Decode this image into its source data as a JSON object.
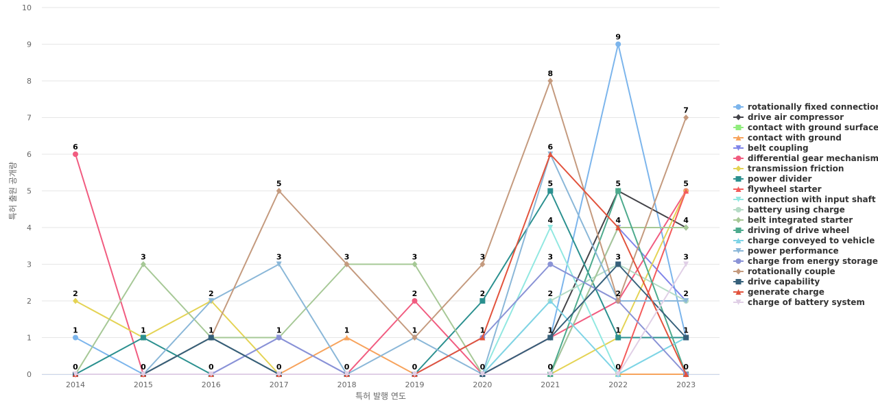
{
  "chart_data": {
    "type": "line",
    "title": "",
    "xlabel": "특허 발행 연도",
    "ylabel": "특허 출원 공개량",
    "x": [
      2014,
      2015,
      2016,
      2017,
      2018,
      2019,
      2020,
      2021,
      2022,
      2023
    ],
    "ylim": [
      0,
      10
    ],
    "yticks": [
      0,
      1,
      2,
      3,
      4,
      5,
      6,
      7,
      8,
      9,
      10
    ],
    "grid": true,
    "legend_position": "right",
    "data_labels": true,
    "series": [
      {
        "name": "rotationally fixed connection",
        "color": "#7cb5ec",
        "marker": "circle",
        "values": [
          1,
          0,
          0,
          0,
          0,
          0,
          0,
          1,
          9,
          1
        ]
      },
      {
        "name": "drive air compressor",
        "color": "#434348",
        "marker": "diamond",
        "values": [
          0,
          0,
          1,
          0,
          0,
          0,
          0,
          1,
          5,
          4
        ]
      },
      {
        "name": "contact with ground surface",
        "color": "#90ed7d",
        "marker": "square",
        "values": [
          0,
          0,
          0,
          0,
          0,
          0,
          0,
          0,
          0,
          0
        ]
      },
      {
        "name": "contact with ground",
        "color": "#f7a35c",
        "marker": "triangle",
        "values": [
          0,
          0,
          0,
          0,
          1,
          0,
          0,
          0,
          0,
          0
        ]
      },
      {
        "name": "belt coupling",
        "color": "#8085e9",
        "marker": "triangle-down",
        "values": [
          0,
          0,
          0,
          1,
          0,
          0,
          0,
          0,
          4,
          2
        ]
      },
      {
        "name": "differential gear mechanism",
        "color": "#f15c80",
        "marker": "circle",
        "values": [
          6,
          0,
          0,
          0,
          0,
          2,
          0,
          1,
          2,
          5
        ]
      },
      {
        "name": "transmission friction",
        "color": "#e4d354",
        "marker": "diamond",
        "values": [
          2,
          1,
          2,
          0,
          0,
          0,
          0,
          0,
          1,
          5
        ]
      },
      {
        "name": "power divider",
        "color": "#2b908f",
        "marker": "square",
        "values": [
          0,
          1,
          0,
          0,
          0,
          0,
          2,
          5,
          1,
          1
        ]
      },
      {
        "name": "flywheel starter",
        "color": "#f45b5b",
        "marker": "triangle",
        "values": [
          0,
          0,
          0,
          0,
          0,
          0,
          0,
          0,
          0,
          5
        ]
      },
      {
        "name": "connection with input shaft",
        "color": "#91e8e1",
        "marker": "triangle-down",
        "values": [
          0,
          0,
          0,
          0,
          0,
          0,
          0,
          4,
          0,
          1
        ]
      },
      {
        "name": "battery using charge",
        "color": "#b5dcc6",
        "marker": "circle",
        "values": [
          0,
          0,
          0,
          0,
          0,
          0,
          0,
          2,
          3,
          2
        ]
      },
      {
        "name": "belt integrated starter",
        "color": "#a6c896",
        "marker": "diamond",
        "values": [
          0,
          3,
          1,
          1,
          3,
          3,
          0,
          0,
          4,
          4
        ]
      },
      {
        "name": "driving of drive wheel",
        "color": "#4daa8d",
        "marker": "square",
        "values": [
          0,
          0,
          0,
          0,
          0,
          0,
          0,
          0,
          5,
          0
        ]
      },
      {
        "name": "charge conveyed to vehicle",
        "color": "#7fd4e6",
        "marker": "triangle",
        "values": [
          0,
          0,
          0,
          0,
          0,
          0,
          0,
          2,
          0,
          1
        ]
      },
      {
        "name": "power performance",
        "color": "#8ab7d8",
        "marker": "triangle-down",
        "values": [
          0,
          0,
          2,
          3,
          0,
          1,
          0,
          6,
          2,
          2
        ]
      },
      {
        "name": "charge from energy storage ...",
        "color": "#8a93d6",
        "marker": "circle",
        "values": [
          0,
          0,
          0,
          1,
          0,
          0,
          1,
          3,
          2,
          0
        ]
      },
      {
        "name": "rotationally couple",
        "color": "#c49a7e",
        "marker": "diamond",
        "values": [
          0,
          0,
          1,
          5,
          3,
          1,
          3,
          8,
          2,
          7
        ]
      },
      {
        "name": "drive capability",
        "color": "#36607a",
        "marker": "square",
        "values": [
          0,
          0,
          1,
          0,
          0,
          0,
          0,
          1,
          3,
          1
        ]
      },
      {
        "name": "generate charge",
        "color": "#e2533d",
        "marker": "triangle",
        "values": [
          0,
          0,
          0,
          0,
          0,
          0,
          1,
          6,
          4,
          0
        ]
      },
      {
        "name": "charge of battery system",
        "color": "#e0cfe6",
        "marker": "triangle-down",
        "values": [
          0,
          0,
          0,
          0,
          0,
          0,
          0,
          0,
          0,
          3
        ]
      }
    ],
    "point_labels": [
      {
        "x": 2014,
        "y": 6,
        "text": "6"
      },
      {
        "x": 2014,
        "y": 2,
        "text": "2"
      },
      {
        "x": 2014,
        "y": 1,
        "text": "1"
      },
      {
        "x": 2014,
        "y": 0,
        "text": "0"
      },
      {
        "x": 2015,
        "y": 3,
        "text": "3"
      },
      {
        "x": 2015,
        "y": 1,
        "text": "1"
      },
      {
        "x": 2015,
        "y": 0,
        "text": "0"
      },
      {
        "x": 2016,
        "y": 2,
        "text": "2"
      },
      {
        "x": 2016,
        "y": 1,
        "text": "1"
      },
      {
        "x": 2016,
        "y": 0,
        "text": "0"
      },
      {
        "x": 2017,
        "y": 5,
        "text": "5"
      },
      {
        "x": 2017,
        "y": 3,
        "text": "3"
      },
      {
        "x": 2017,
        "y": 1,
        "text": "1"
      },
      {
        "x": 2017,
        "y": 0,
        "text": "0"
      },
      {
        "x": 2018,
        "y": 3,
        "text": "3"
      },
      {
        "x": 2018,
        "y": 1,
        "text": "1"
      },
      {
        "x": 2018,
        "y": 0,
        "text": "0"
      },
      {
        "x": 2019,
        "y": 3,
        "text": "3"
      },
      {
        "x": 2019,
        "y": 2,
        "text": "2"
      },
      {
        "x": 2019,
        "y": 1,
        "text": "1"
      },
      {
        "x": 2019,
        "y": 0,
        "text": "0"
      },
      {
        "x": 2020,
        "y": 3,
        "text": "3"
      },
      {
        "x": 2020,
        "y": 2,
        "text": "2"
      },
      {
        "x": 2020,
        "y": 1,
        "text": "1"
      },
      {
        "x": 2020,
        "y": 0,
        "text": "0"
      },
      {
        "x": 2021,
        "y": 8,
        "text": "8"
      },
      {
        "x": 2021,
        "y": 6,
        "text": "6"
      },
      {
        "x": 2021,
        "y": 5,
        "text": "5"
      },
      {
        "x": 2021,
        "y": 4,
        "text": "4"
      },
      {
        "x": 2021,
        "y": 3,
        "text": "3"
      },
      {
        "x": 2021,
        "y": 2,
        "text": "2"
      },
      {
        "x": 2021,
        "y": 1,
        "text": "1"
      },
      {
        "x": 2021,
        "y": 0,
        "text": "0"
      },
      {
        "x": 2022,
        "y": 9,
        "text": "9"
      },
      {
        "x": 2022,
        "y": 5,
        "text": "5"
      },
      {
        "x": 2022,
        "y": 4,
        "text": "4"
      },
      {
        "x": 2022,
        "y": 3,
        "text": "3"
      },
      {
        "x": 2022,
        "y": 2,
        "text": "2"
      },
      {
        "x": 2022,
        "y": 1,
        "text": "1"
      },
      {
        "x": 2022,
        "y": 0,
        "text": "0"
      },
      {
        "x": 2023,
        "y": 7,
        "text": "7"
      },
      {
        "x": 2023,
        "y": 5,
        "text": "5"
      },
      {
        "x": 2023,
        "y": 4,
        "text": "4"
      },
      {
        "x": 2023,
        "y": 3,
        "text": "3"
      },
      {
        "x": 2023,
        "y": 2,
        "text": "2"
      },
      {
        "x": 2023,
        "y": 1,
        "text": "1"
      },
      {
        "x": 2023,
        "y": 0,
        "text": "0"
      }
    ]
  }
}
